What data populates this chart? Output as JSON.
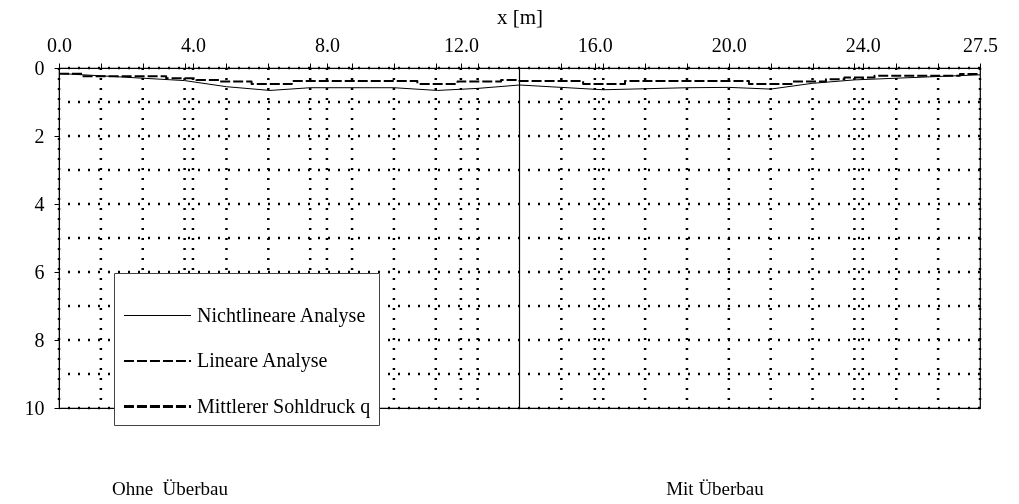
{
  "chart_data": {
    "type": "line",
    "xlabel": "x [m]",
    "xlim": [
      0,
      27.5
    ],
    "ylim": [
      10,
      0
    ],
    "xticks": [
      {
        "value": 0,
        "label": "0.0"
      },
      {
        "value": 1.25,
        "label": null
      },
      {
        "value": 2.5,
        "label": null
      },
      {
        "value": 3.75,
        "label": null
      },
      {
        "value": 4,
        "label": "4.0"
      },
      {
        "value": 5,
        "label": null
      },
      {
        "value": 6.25,
        "label": null
      },
      {
        "value": 7.5,
        "label": null
      },
      {
        "value": 8,
        "label": "8.0"
      },
      {
        "value": 8.75,
        "label": null
      },
      {
        "value": 10,
        "label": null
      },
      {
        "value": 11.25,
        "label": null
      },
      {
        "value": 12,
        "label": "12.0"
      },
      {
        "value": 12.5,
        "label": null
      },
      {
        "value": 15,
        "label": null
      },
      {
        "value": 16,
        "label": "16.0"
      },
      {
        "value": 16.25,
        "label": null
      },
      {
        "value": 17.5,
        "label": null
      },
      {
        "value": 18.75,
        "label": null
      },
      {
        "value": 20,
        "label": "20.0"
      },
      {
        "value": 21.25,
        "label": null
      },
      {
        "value": 22.5,
        "label": null
      },
      {
        "value": 23.75,
        "label": null
      },
      {
        "value": 24,
        "label": "24.0"
      },
      {
        "value": 25,
        "label": null
      },
      {
        "value": 26.25,
        "label": null
      },
      {
        "value": 27.5,
        "label": "27.5"
      }
    ],
    "yticks": [
      0,
      {
        "value": 1,
        "label": null
      },
      2,
      {
        "value": 3,
        "label": null
      },
      4,
      {
        "value": 5,
        "label": null
      },
      6,
      {
        "value": 7,
        "label": null
      },
      8,
      {
        "value": 9,
        "label": null
      },
      10
    ],
    "grid": true,
    "legend": "bottom left",
    "series": [
      {
        "name": "Nichtlineare Analyse",
        "color": "#000000",
        "line_style": "solid",
        "x": [
          0,
          3.75,
          5,
          6.3,
          7.5,
          10,
          11.3,
          12.5,
          13.75,
          16.25,
          18.75,
          20,
          21.25,
          22.5,
          23.75,
          27.5
        ],
        "values": [
          0.16,
          0.37,
          0.55,
          0.66,
          0.58,
          0.58,
          0.66,
          0.6,
          0.5,
          0.64,
          0.58,
          0.57,
          0.62,
          0.45,
          0.35,
          0.2
        ]
      },
      {
        "name": "Lineare Analyse",
        "color": "#000000",
        "line_style": "dashed",
        "x": [
          0,
          0.7,
          0.7,
          3.2,
          3.2,
          4.1,
          4.1,
          4.8,
          4.8,
          5.75,
          5.75,
          6.95,
          6.95,
          10.7,
          10.7,
          11.9,
          11.9,
          13.2,
          13.2,
          13.75,
          13.75,
          15.65,
          15.65,
          16.9,
          16.9,
          20.6,
          20.6,
          21.9,
          21.9,
          22.9,
          22.9,
          23.45,
          23.45,
          24.35,
          24.35,
          26.9,
          26.9,
          27.5
        ],
        "values": [
          0.17,
          0.17,
          0.24,
          0.24,
          0.3,
          0.3,
          0.35,
          0.35,
          0.4,
          0.4,
          0.47,
          0.47,
          0.38,
          0.38,
          0.47,
          0.47,
          0.4,
          0.4,
          0.35,
          0.35,
          0.38,
          0.38,
          0.47,
          0.47,
          0.38,
          0.38,
          0.47,
          0.47,
          0.4,
          0.4,
          0.33,
          0.33,
          0.28,
          0.28,
          0.23,
          0.23,
          0.18,
          0.18
        ]
      },
      {
        "name": "Mittlerer Sohldruck q",
        "color": "#000000",
        "line_style": "dashed"
      }
    ],
    "ref_lines": [
      {
        "axis": "x",
        "value": 13.75,
        "label": null,
        "color": "#000000",
        "line_style": "solid"
      }
    ],
    "annotations": [
      "Ohne  Überbau",
      "Mit Überbau"
    ]
  }
}
